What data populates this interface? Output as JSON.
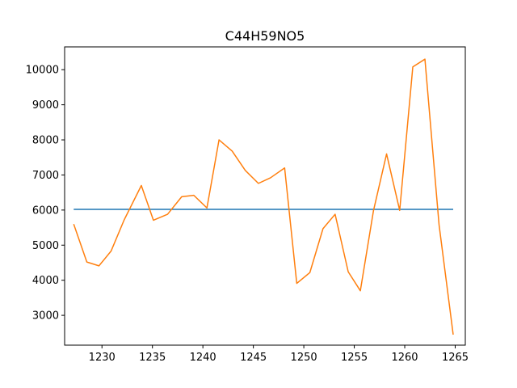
{
  "chart_data": {
    "type": "line",
    "title": "C44H59NO5",
    "xlabel": "",
    "ylabel": "",
    "xlim": [
      1226.3,
      1266.0
    ],
    "ylim": [
      2150,
      10650
    ],
    "x_ticks": [
      1230,
      1235,
      1240,
      1245,
      1250,
      1255,
      1260,
      1265
    ],
    "y_ticks": [
      3000,
      4000,
      5000,
      6000,
      7000,
      8000,
      9000,
      10000
    ],
    "grid": false,
    "legend": "none",
    "series": [
      {
        "color": "#1f77b4",
        "x": [
          1227.2,
          1264.8
        ],
        "y": [
          6020,
          6020
        ]
      },
      {
        "color": "#ff7f0e",
        "x": [
          1227.2,
          1228.5,
          1229.7,
          1230.9,
          1232.2,
          1233.9,
          1235.1,
          1236.5,
          1237.9,
          1239.1,
          1240.4,
          1241.6,
          1242.9,
          1244.2,
          1245.5,
          1246.7,
          1248.1,
          1249.3,
          1250.6,
          1251.9,
          1253.1,
          1254.4,
          1255.6,
          1256.9,
          1258.2,
          1259.5,
          1260.8,
          1262.0,
          1263.4,
          1264.8
        ],
        "y": [
          5600,
          4520,
          4410,
          4830,
          5720,
          6700,
          5710,
          5880,
          6380,
          6420,
          6060,
          8000,
          7680,
          7130,
          6760,
          6920,
          7200,
          3910,
          4220,
          5470,
          5880,
          4240,
          3700,
          5980,
          7600,
          5990,
          10080,
          10300,
          5580,
          2450
        ]
      }
    ]
  }
}
